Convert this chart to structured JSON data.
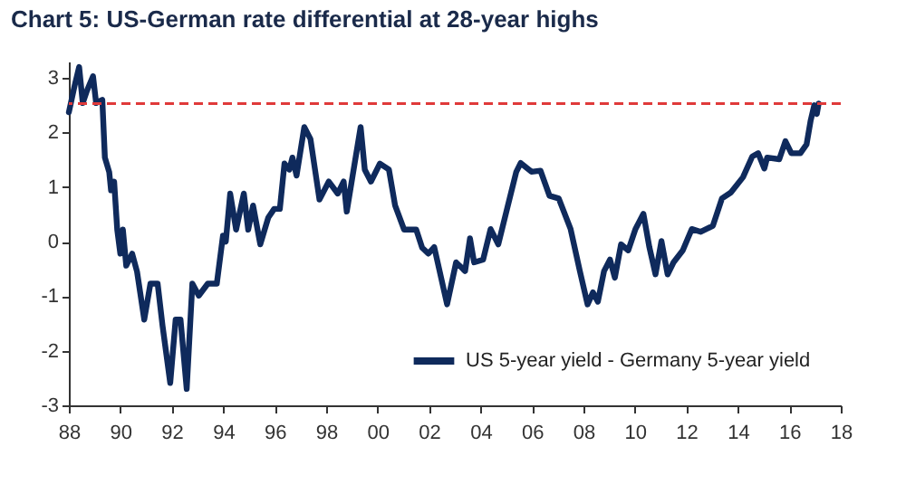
{
  "chart_data": {
    "type": "line",
    "title": "Chart 5: US-German rate differential at 28-year highs",
    "xlim": [
      1988,
      2018
    ],
    "ylim": [
      -3,
      3.3
    ],
    "xticks": [
      {
        "value": 1988,
        "label": "88"
      },
      {
        "value": 1990,
        "label": "90"
      },
      {
        "value": 1992,
        "label": "92"
      },
      {
        "value": 1994,
        "label": "94"
      },
      {
        "value": 1996,
        "label": "96"
      },
      {
        "value": 1998,
        "label": "98"
      },
      {
        "value": 2000,
        "label": "00"
      },
      {
        "value": 2002,
        "label": "02"
      },
      {
        "value": 2004,
        "label": "04"
      },
      {
        "value": 2006,
        "label": "06"
      },
      {
        "value": 2008,
        "label": "08"
      },
      {
        "value": 2010,
        "label": "10"
      },
      {
        "value": 2012,
        "label": "12"
      },
      {
        "value": 2014,
        "label": "14"
      },
      {
        "value": 2016,
        "label": "16"
      },
      {
        "value": 2018,
        "label": "18"
      }
    ],
    "yticks": [
      -3,
      -2,
      -1,
      0,
      1,
      2,
      3
    ],
    "grid": false,
    "legend": "bottom right",
    "marker": "none",
    "line_style": "solid",
    "ref_lines": [
      {
        "axis": "y",
        "value": 2.53,
        "color": "#e03a3a",
        "line_style": "dashed"
      }
    ],
    "series": [
      {
        "name": "US 5-year yield - Germany 5-year yield",
        "color": "#0f2a5c",
        "x": [
          1988.0,
          1988.23,
          1988.4,
          1988.54,
          1988.7,
          1988.94,
          1989.06,
          1989.3,
          1989.4,
          1989.57,
          1989.64,
          1989.76,
          1989.88,
          1990.0,
          1990.1,
          1990.23,
          1990.46,
          1990.65,
          1990.93,
          1991.17,
          1991.45,
          1991.64,
          1991.94,
          1992.15,
          1992.34,
          1992.58,
          1992.8,
          1993.05,
          1993.4,
          1993.75,
          1993.99,
          1994.1,
          1994.27,
          1994.5,
          1994.8,
          1994.97,
          1995.16,
          1995.44,
          1995.75,
          1995.98,
          1996.2,
          1996.38,
          1996.57,
          1996.69,
          1996.85,
          1997.15,
          1997.39,
          1997.74,
          1998.1,
          1998.45,
          1998.68,
          1998.8,
          1999.03,
          1999.34,
          1999.5,
          1999.74,
          2000.09,
          2000.44,
          2000.68,
          2001.03,
          2001.5,
          2001.73,
          2001.97,
          2002.2,
          2002.7,
          2003.05,
          2003.4,
          2003.59,
          2003.75,
          2004.1,
          2004.39,
          2004.69,
          2005.04,
          2005.39,
          2005.56,
          2005.98,
          2006.33,
          2006.68,
          2007.04,
          2007.5,
          2007.86,
          2008.16,
          2008.37,
          2008.56,
          2008.8,
          2009.03,
          2009.22,
          2009.46,
          2009.74,
          2010.02,
          2010.33,
          2010.56,
          2010.8,
          2011.03,
          2011.27,
          2011.5,
          2011.86,
          2012.21,
          2012.56,
          2013.03,
          2013.38,
          2013.73,
          2014.2,
          2014.56,
          2014.79,
          2015.03,
          2015.14,
          2015.61,
          2015.85,
          2016.08,
          2016.43,
          2016.67,
          2016.83,
          2016.97,
          2017.07,
          2017.14
        ],
        "values": [
          2.37,
          2.87,
          3.2,
          2.54,
          2.76,
          3.03,
          2.54,
          2.6,
          1.54,
          1.27,
          0.94,
          1.1,
          0.22,
          -0.22,
          0.22,
          -0.44,
          -0.22,
          -0.55,
          -1.43,
          -0.77,
          -0.77,
          -1.54,
          -2.59,
          -1.43,
          -1.43,
          -2.7,
          -0.77,
          -0.99,
          -0.77,
          -0.77,
          0.11,
          0.0,
          0.88,
          0.22,
          0.88,
          0.22,
          0.66,
          -0.05,
          0.44,
          0.6,
          0.6,
          1.43,
          1.32,
          1.54,
          1.21,
          2.1,
          1.88,
          0.77,
          1.1,
          0.88,
          1.1,
          0.55,
          1.21,
          2.1,
          1.32,
          1.1,
          1.43,
          1.32,
          0.66,
          0.22,
          0.22,
          -0.11,
          -0.22,
          -0.1,
          -1.15,
          -0.38,
          -0.54,
          0.06,
          -0.38,
          -0.33,
          0.23,
          -0.05,
          0.62,
          1.28,
          1.44,
          1.28,
          1.3,
          0.84,
          0.79,
          0.23,
          -0.54,
          -1.15,
          -0.93,
          -1.1,
          -0.54,
          -0.33,
          -0.66,
          -0.05,
          -0.16,
          0.23,
          0.51,
          -0.1,
          -0.6,
          0.01,
          -0.6,
          -0.38,
          -0.16,
          0.23,
          0.18,
          0.29,
          0.79,
          0.9,
          1.18,
          1.56,
          1.62,
          1.34,
          1.54,
          1.51,
          1.84,
          1.62,
          1.62,
          1.78,
          2.22,
          2.5,
          2.34,
          2.53
        ]
      }
    ]
  }
}
